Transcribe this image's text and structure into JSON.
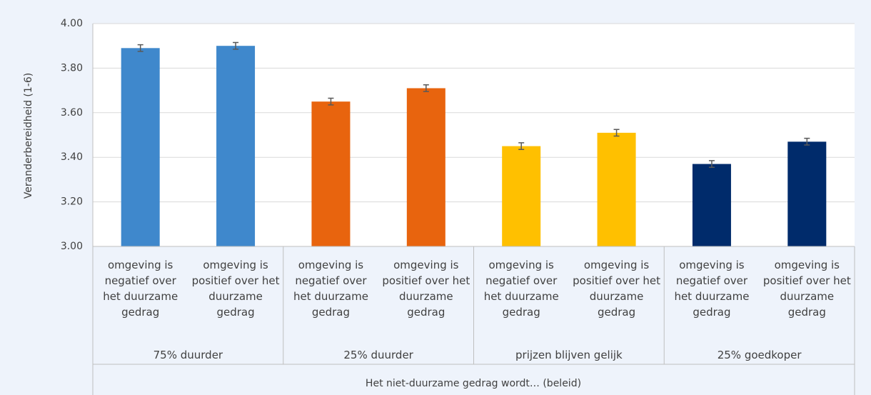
{
  "chart_data": {
    "type": "bar",
    "ylabel": "Veranderbereidheid (1-6)",
    "xlabel": "Het niet-duurzame gedrag wordt… (beleid)",
    "ylim": [
      3,
      4
    ],
    "yticks": [
      {
        "value": 3,
        "label": "3.00"
      },
      {
        "value": 3.2,
        "label": "3.20"
      },
      {
        "value": 3.4,
        "label": "3.40"
      },
      {
        "value": 3.6,
        "label": "3.60"
      },
      {
        "value": 3.8,
        "label": "3.80"
      },
      {
        "value": 4,
        "label": "4.00"
      }
    ],
    "grid": true,
    "groups": [
      {
        "label": "75% duurder",
        "color": "#3f88cc",
        "categories": [
          "omgeving is negatief over het duurzame gedrag",
          "omgeving is positief over het duurzame gedrag"
        ],
        "values": [
          3.89,
          3.9
        ],
        "errors": [
          0.015,
          0.015
        ]
      },
      {
        "label": "25% duurder",
        "color": "#e8640e",
        "categories": [
          "omgeving is negatief over het duurzame gedrag",
          "omgeving is positief over het duurzame gedrag"
        ],
        "values": [
          3.65,
          3.71
        ],
        "errors": [
          0.015,
          0.015
        ]
      },
      {
        "label": "prijzen blijven gelijk",
        "color": "#ffc000",
        "categories": [
          "omgeving is negatief over het duurzame gedrag",
          "omgeving is positief over het duurzame gedrag"
        ],
        "values": [
          3.45,
          3.51
        ],
        "errors": [
          0.015,
          0.015
        ]
      },
      {
        "label": "25% goedkoper",
        "color": "#002b6b",
        "categories": [
          "omgeving is negatief over het duurzame gedrag",
          "omgeving is positief over het duurzame gedrag"
        ],
        "values": [
          3.37,
          3.47
        ],
        "errors": [
          0.015,
          0.015
        ]
      }
    ]
  }
}
